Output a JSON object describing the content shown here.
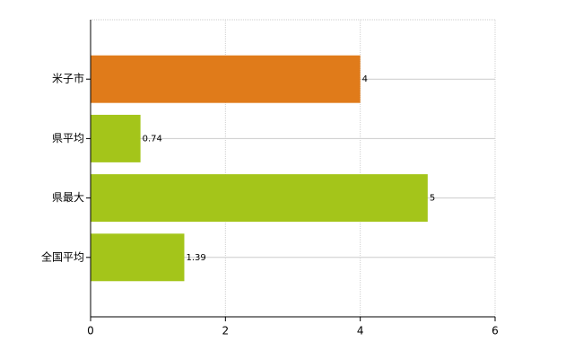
{
  "chart_data": {
    "type": "bar",
    "orientation": "horizontal",
    "categories": [
      "米子市",
      "県平均",
      "県最大",
      "全国平均"
    ],
    "values": [
      4,
      0.74,
      5,
      1.39
    ],
    "colors": [
      "#e07b1a",
      "#a4c51a",
      "#a4c51a",
      "#a4c51a"
    ],
    "xlim": [
      0,
      6
    ],
    "xticks": [
      0,
      2,
      4,
      6
    ],
    "grid": true
  }
}
